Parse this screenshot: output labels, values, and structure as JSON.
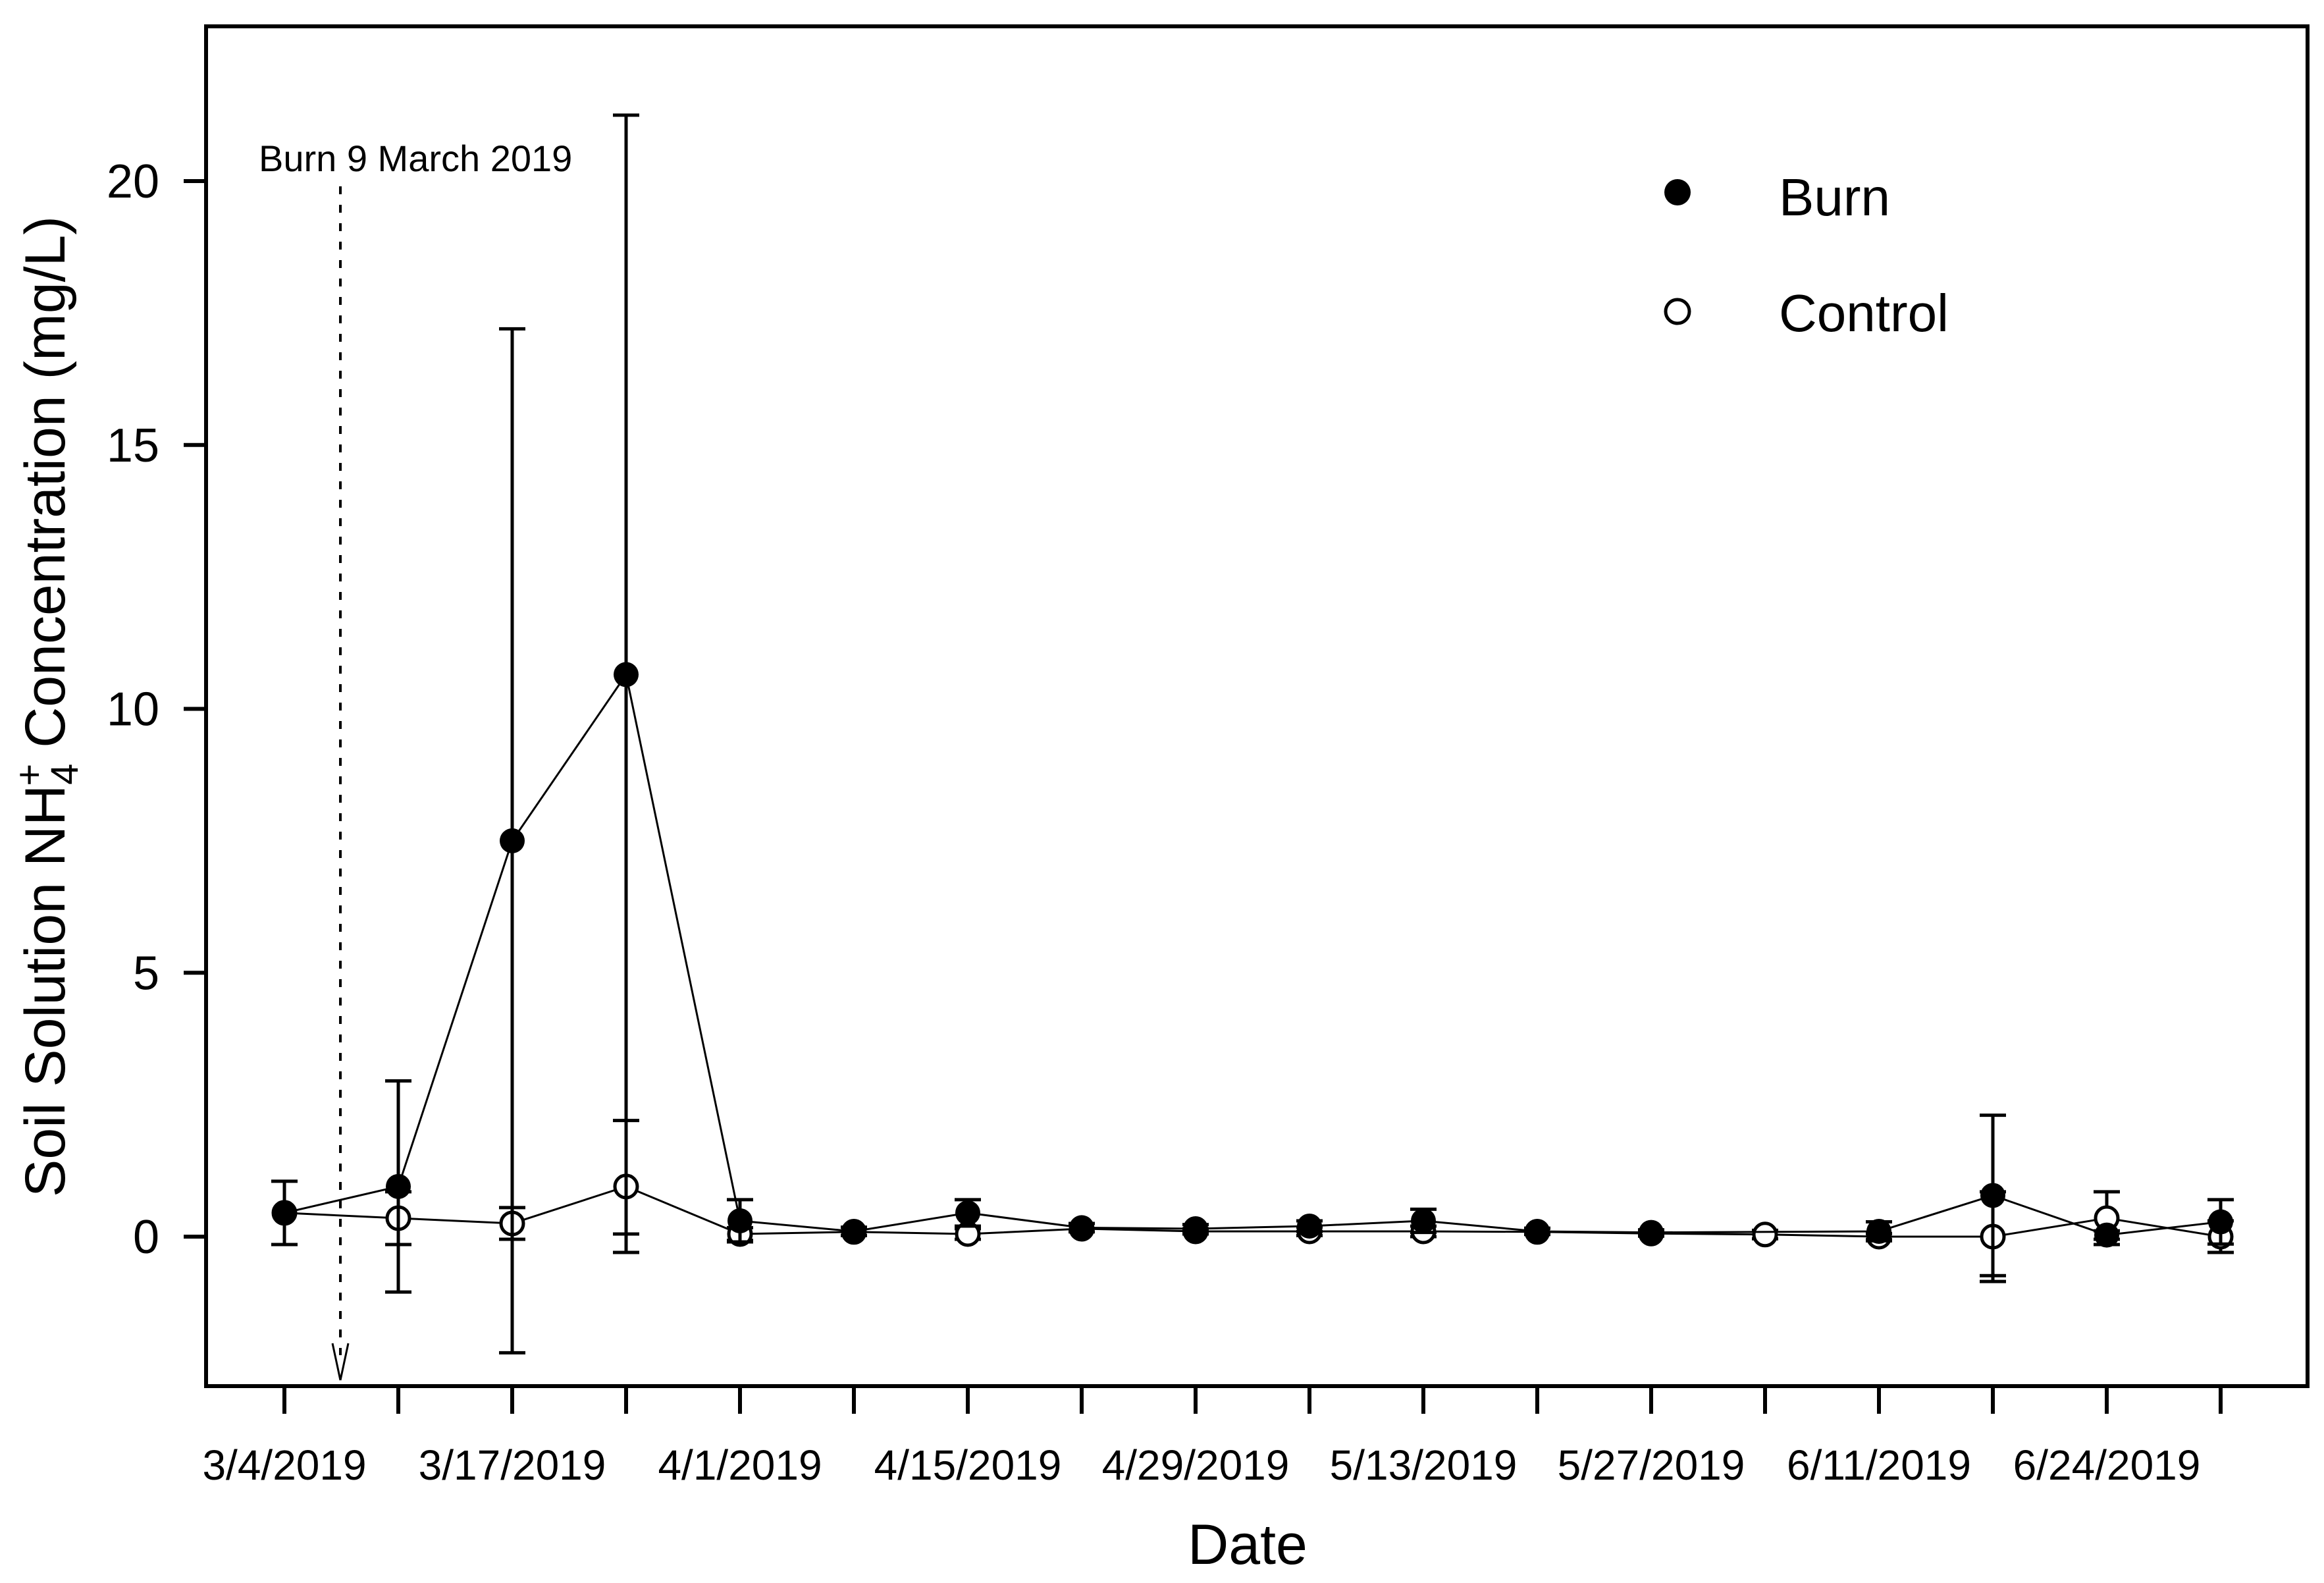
{
  "figure": {
    "background_color": "#ffffff",
    "foreground_color": "#000000",
    "description": "Scatter/line plot with error bars of soil solution ammonium concentration over time for burn and control treatments"
  },
  "chart_data": {
    "type": "line",
    "title": "",
    "xlabel": "Date",
    "ylabel": "Soil Solution NH4+ Concentration (mg/L)",
    "ylabel_parts": {
      "prefix": "Soil Solution NH",
      "sub": "4",
      "sup": "+",
      "suffix": " Concentration (mg/L)"
    },
    "y_ticks": [
      0,
      5,
      10,
      15,
      20
    ],
    "ylim": [
      -2.85,
      22.9
    ],
    "x_positions": 18,
    "x_tick_labels": [
      {
        "index": 0,
        "label": "3/4/2019"
      },
      {
        "index": 2,
        "label": "3/17/2019"
      },
      {
        "index": 4,
        "label": "4/1/2019"
      },
      {
        "index": 6,
        "label": "4/15/2019"
      },
      {
        "index": 8,
        "label": "4/29/2019"
      },
      {
        "index": 10,
        "label": "5/13/2019"
      },
      {
        "index": 12,
        "label": "5/27/2019"
      },
      {
        "index": 14,
        "label": "6/11/2019"
      },
      {
        "index": 16,
        "label": "6/24/2019"
      }
    ],
    "grid": false,
    "error_bars": "symmetric",
    "legend": {
      "position": "top-right",
      "items": [
        {
          "label": "Burn",
          "marker": "filled-circle"
        },
        {
          "label": "Control",
          "marker": "open-circle"
        }
      ]
    },
    "annotation": {
      "text": "Burn 9 March 2019",
      "style": "vertical dotted line with downward arrow at burn date"
    },
    "series": [
      {
        "name": "Burn",
        "marker": "filled-circle",
        "color": "#000000",
        "points": [
          {
            "x": 0,
            "y": 0.45,
            "err": 0.6
          },
          {
            "x": 1,
            "y": 0.95,
            "err": 2.0
          },
          {
            "x": 2,
            "y": 7.5,
            "err": 9.7
          },
          {
            "x": 3,
            "y": 10.65,
            "err": 10.6
          },
          {
            "x": 4,
            "y": 0.3,
            "err": 0.4
          },
          {
            "x": 5,
            "y": 0.1,
            "err": 0.08
          },
          {
            "x": 6,
            "y": 0.45,
            "err": 0.25
          },
          {
            "x": 7,
            "y": 0.17,
            "err": 0.08
          },
          {
            "x": 8,
            "y": 0.15,
            "err": 0.08
          },
          {
            "x": 9,
            "y": 0.2,
            "err": 0.1
          },
          {
            "x": 10,
            "y": 0.3,
            "err": 0.22
          },
          {
            "x": 11,
            "y": 0.1,
            "err": 0.06
          },
          {
            "x": 12,
            "y": 0.08,
            "err": 0.05
          },
          {
            "x": 14,
            "y": 0.1,
            "err": 0.18
          },
          {
            "x": 15,
            "y": 0.78,
            "err": 1.52
          },
          {
            "x": 16,
            "y": 0.03,
            "err": 0.08
          },
          {
            "x": 17,
            "y": 0.28,
            "err": 0.42
          }
        ]
      },
      {
        "name": "Control",
        "marker": "open-circle",
        "color": "#000000",
        "points": [
          {
            "x": 0,
            "y": 0.45
          },
          {
            "x": 1,
            "y": 0.35,
            "err": 0.5
          },
          {
            "x": 2,
            "y": 0.25,
            "err": 0.3
          },
          {
            "x": 3,
            "y": 0.95,
            "err": 1.25
          },
          {
            "x": 4,
            "y": 0.05,
            "err": 0.12
          },
          {
            "x": 5,
            "y": 0.09
          },
          {
            "x": 6,
            "y": 0.05,
            "err": 0.1
          },
          {
            "x": 7,
            "y": 0.15
          },
          {
            "x": 8,
            "y": 0.1,
            "err": 0.05
          },
          {
            "x": 9,
            "y": 0.1,
            "err": 0.08
          },
          {
            "x": 10,
            "y": 0.1,
            "err": 0.1
          },
          {
            "x": 11,
            "y": 0.09
          },
          {
            "x": 12,
            "y": 0.06,
            "err": 0.05
          },
          {
            "x": 13,
            "y": 0.04,
            "err": 0.08
          },
          {
            "x": 14,
            "y": 0.0,
            "err": 0.06
          },
          {
            "x": 15,
            "y": 0.0,
            "err": 0.85
          },
          {
            "x": 16,
            "y": 0.35,
            "err": 0.5
          },
          {
            "x": 17,
            "y": 0.0,
            "err": 0.3
          }
        ]
      }
    ]
  }
}
